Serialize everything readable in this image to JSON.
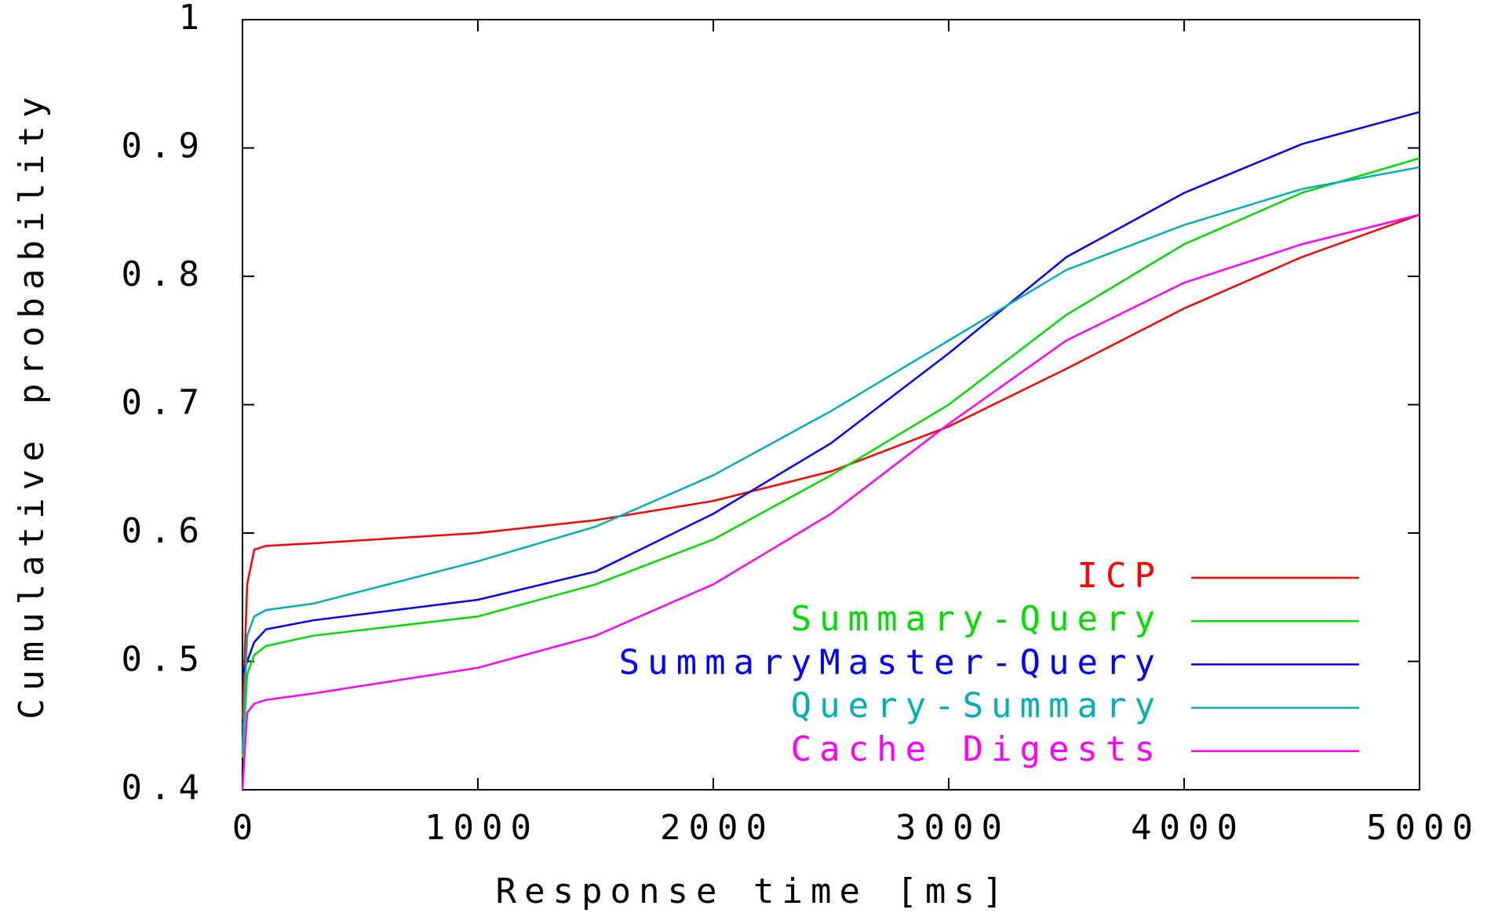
{
  "chart_data": {
    "type": "line",
    "xlabel": "Response time [ms]",
    "ylabel": "Cumulative probability",
    "x": [
      0,
      20,
      50,
      100,
      300,
      1000,
      1500,
      2000,
      2500,
      3000,
      3500,
      4000,
      4500,
      5000
    ],
    "series": [
      {
        "name": "ICP",
        "color": "#ff0000",
        "values": [
          0.455,
          0.56,
          0.587,
          0.59,
          0.592,
          0.6,
          0.61,
          0.625,
          0.648,
          0.683,
          0.728,
          0.775,
          0.815,
          0.848
        ]
      },
      {
        "name": "Summary-Query",
        "color": "#00dd00",
        "values": [
          0.425,
          0.49,
          0.505,
          0.512,
          0.52,
          0.535,
          0.56,
          0.595,
          0.645,
          0.7,
          0.77,
          0.825,
          0.865,
          0.892
        ]
      },
      {
        "name": "SummaryMaster-Query",
        "color": "#0000ff",
        "values": [
          0.49,
          0.5,
          0.515,
          0.525,
          0.532,
          0.548,
          0.57,
          0.615,
          0.67,
          0.74,
          0.815,
          0.865,
          0.903,
          0.928
        ]
      },
      {
        "name": "Query-Summary",
        "color": "#00b0b8",
        "values": [
          0.43,
          0.52,
          0.535,
          0.54,
          0.545,
          0.578,
          0.605,
          0.645,
          0.695,
          0.75,
          0.805,
          0.84,
          0.868,
          0.885
        ]
      },
      {
        "name": "Cache Digests",
        "color": "#ff00ff",
        "values": [
          0.4,
          0.46,
          0.467,
          0.47,
          0.475,
          0.495,
          0.52,
          0.56,
          0.615,
          0.685,
          0.75,
          0.795,
          0.825,
          0.848
        ]
      }
    ],
    "xlim": [
      0,
      5000
    ],
    "xticks": [
      0,
      1000,
      2000,
      3000,
      4000,
      5000
    ],
    "ylim": [
      0.4,
      1
    ],
    "yticks": [
      0.4,
      0.5,
      0.6,
      0.7,
      0.8,
      0.9,
      1
    ],
    "legend": "lower right",
    "grid": false
  }
}
